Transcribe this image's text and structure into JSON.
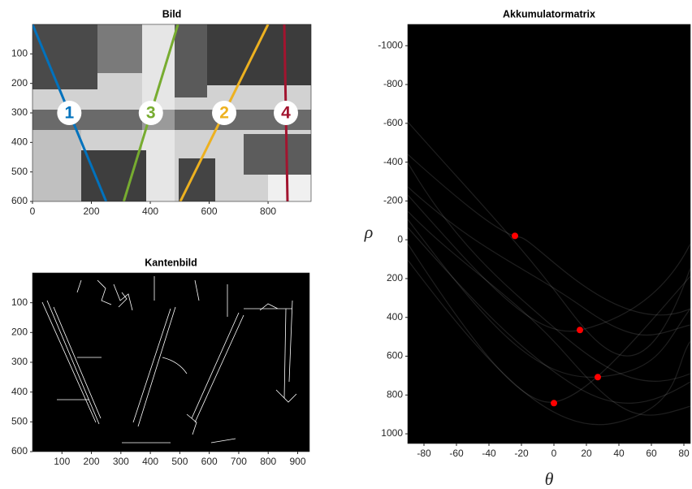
{
  "chart_data": [
    {
      "type": "image",
      "title": "Bild",
      "xlim": [
        0,
        946
      ],
      "ylim": [
        0,
        600
      ],
      "ydir": "reverse",
      "xticks": [
        0,
        200,
        400,
        600,
        800
      ],
      "yticks": [
        100,
        200,
        300,
        400,
        500,
        600
      ],
      "series": [
        {
          "name": "1",
          "color": "#0072bd",
          "x": [
            0,
            250
          ],
          "y": [
            0,
            600
          ]
        },
        {
          "name": "3",
          "color": "#77ac30",
          "x": [
            494,
            310
          ],
          "y": [
            0,
            600
          ]
        },
        {
          "name": "2",
          "color": "#edb120",
          "x": [
            800,
            502
          ],
          "y": [
            0,
            600
          ]
        },
        {
          "name": "4",
          "color": "#a2142f",
          "x": [
            855,
            866
          ],
          "y": [
            0,
            600
          ]
        }
      ]
    },
    {
      "type": "image",
      "title": "Kantenbild",
      "xlim": [
        0,
        940
      ],
      "ylim": [
        0,
        600
      ],
      "ydir": "reverse",
      "xticks": [
        100,
        200,
        300,
        400,
        500,
        600,
        700,
        800,
        900
      ],
      "yticks": [
        100,
        200,
        300,
        400,
        500,
        600
      ]
    },
    {
      "type": "image",
      "title": "Akkumulatormatrix",
      "xlabel": "θ",
      "ylabel": "ρ",
      "xlim": [
        -90,
        84
      ],
      "ylim": [
        -1110,
        1050
      ],
      "ydir": "reverse",
      "xticks": [
        -80,
        -60,
        -40,
        -20,
        0,
        20,
        40,
        60,
        80
      ],
      "yticks": [
        -1000,
        -800,
        -600,
        -400,
        -200,
        0,
        200,
        400,
        600,
        800,
        1000
      ],
      "points": {
        "color": "#ff0000",
        "x": [
          -24,
          16,
          27,
          0
        ],
        "y": [
          -20,
          465,
          708,
          842
        ]
      }
    }
  ]
}
